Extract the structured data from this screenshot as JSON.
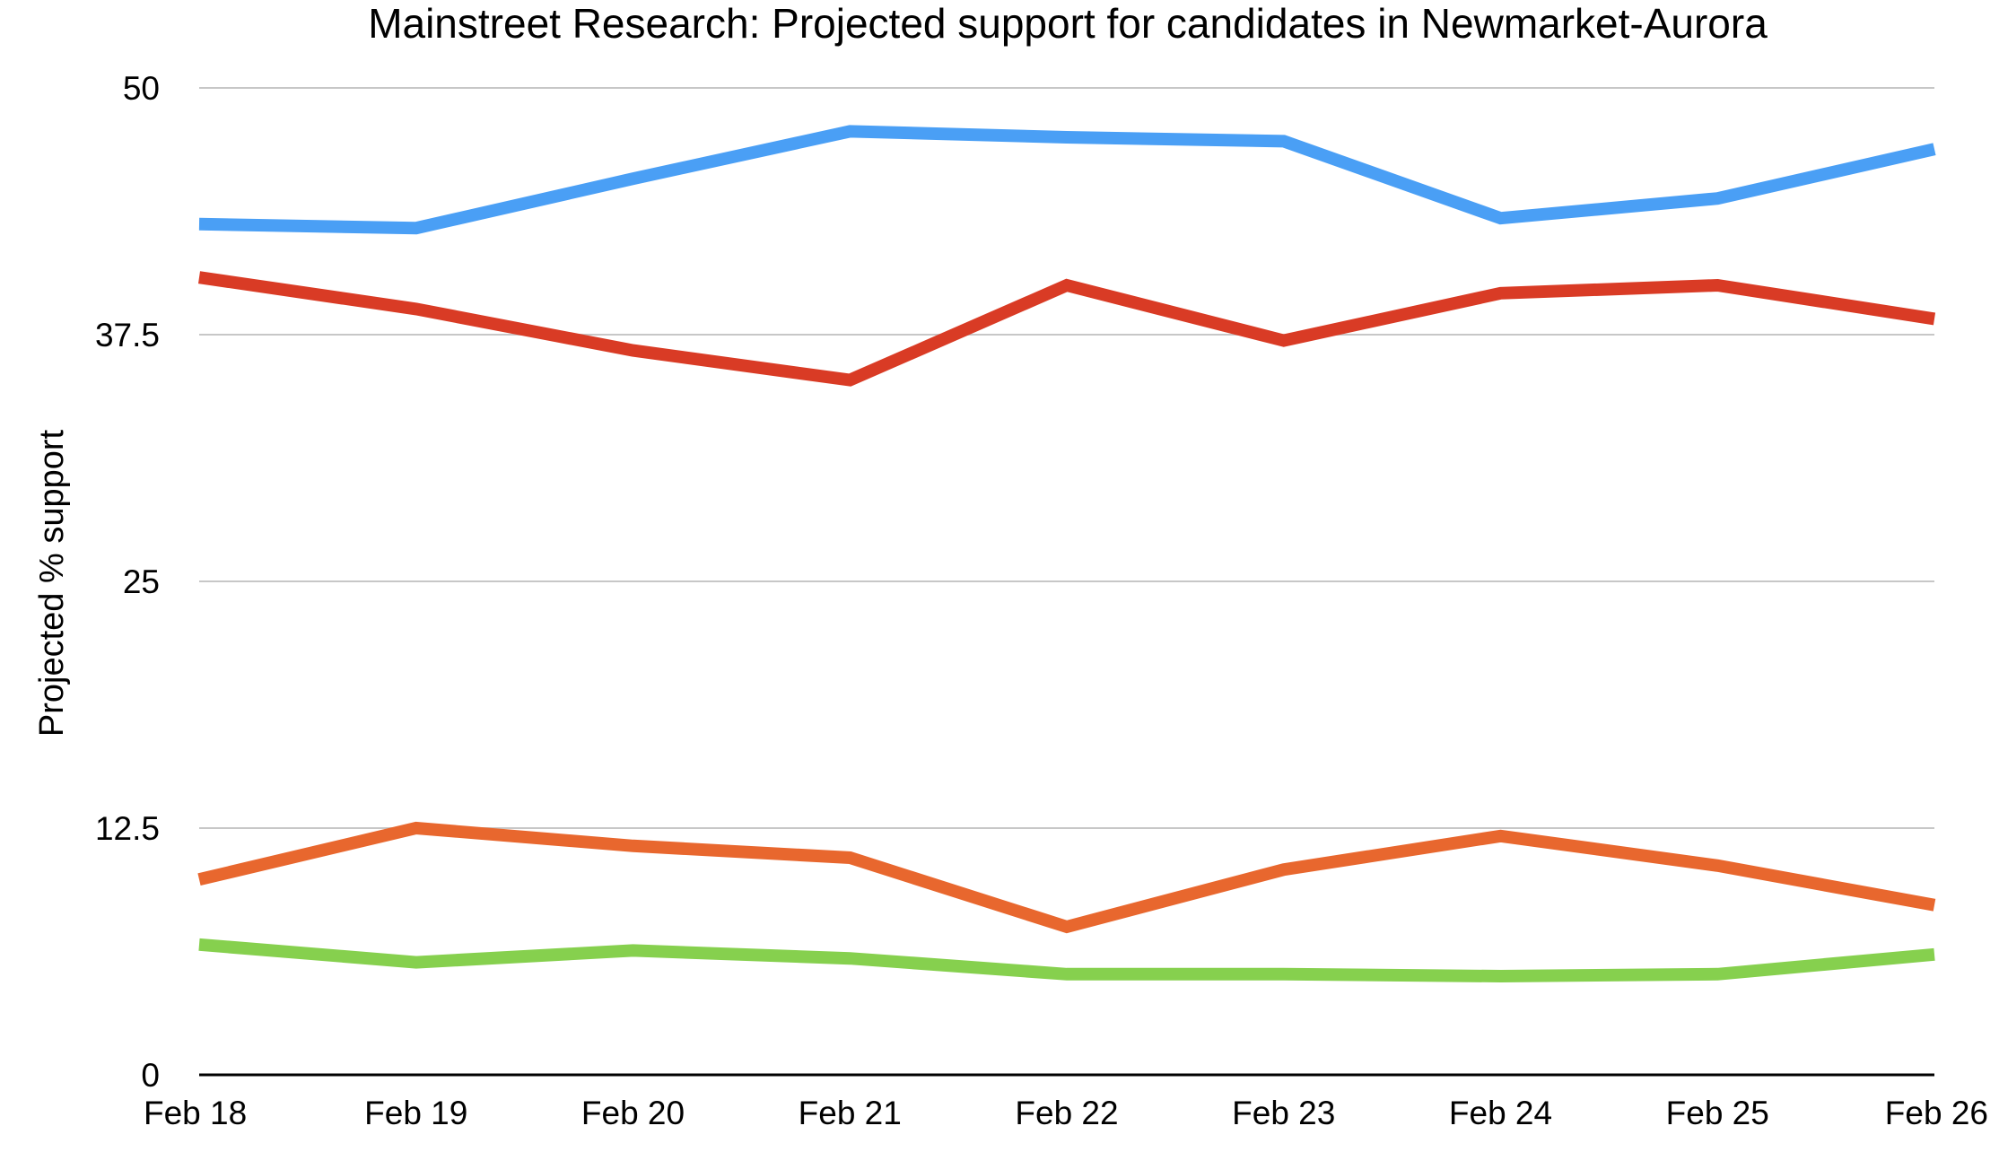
{
  "chart_data": {
    "type": "line",
    "title": "Mainstreet Research: Projected support for candidates in Newmarket-Aurora",
    "xlabel": "",
    "ylabel": "Projected % support",
    "categories": [
      "Feb 18",
      "Feb 19",
      "Feb 20",
      "Feb 21",
      "Feb 22",
      "Feb 23",
      "Feb 24",
      "Feb 25",
      "Feb 26"
    ],
    "ylim": [
      0,
      50
    ],
    "yticks": [
      0,
      12.5,
      25,
      37.5,
      50
    ],
    "ytick_labels": [
      "0",
      "12.5",
      "25",
      "37.5",
      "50"
    ],
    "grid": true,
    "legend": "none",
    "series": [
      {
        "color": "#4a9ff5",
        "values": [
          43.1,
          42.9,
          45.4,
          47.8,
          47.5,
          47.3,
          43.4,
          44.4,
          46.9
        ]
      },
      {
        "color": "#d93b25",
        "values": [
          40.4,
          38.8,
          36.7,
          35.2,
          40.0,
          37.2,
          39.6,
          40.0,
          38.3
        ]
      },
      {
        "color": "#e8672e",
        "values": [
          9.9,
          12.5,
          11.6,
          11.0,
          7.5,
          10.4,
          12.1,
          10.6,
          8.6
        ]
      },
      {
        "color": "#86d04e",
        "values": [
          6.6,
          5.7,
          6.3,
          5.9,
          5.1,
          5.1,
          5.0,
          5.1,
          6.1
        ]
      }
    ]
  }
}
